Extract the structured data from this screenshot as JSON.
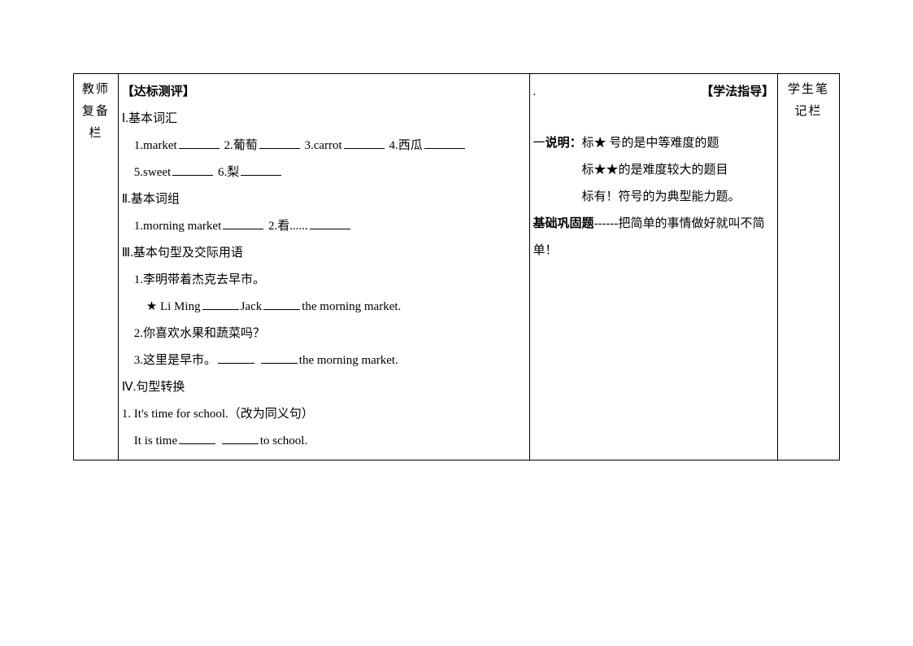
{
  "leftColumn": {
    "label": "教师复备栏"
  },
  "main": {
    "assessmentTitle": "【达标测评】",
    "section1": {
      "title": "Ⅰ.基本词汇",
      "item1_prefix": "1.market",
      "item2_prefix": "2.葡萄",
      "item3_prefix": "3.carrot",
      "item4_prefix": "4.西瓜",
      "item5_prefix": "5.sweet",
      "item6_prefix": "6.梨"
    },
    "section2": {
      "title": "Ⅱ.基本词组",
      "item1_prefix": "1.morning market",
      "item2_prefix": "2.看......"
    },
    "section3": {
      "title": "Ⅲ.基本句型及交际用语",
      "item1": "1.李明带着杰克去早市。",
      "item1_sub_prefix": "★ Li Ming",
      "item1_sub_mid": "Jack",
      "item1_sub_suffix": "the morning market.",
      "item2": "2.你喜欢水果和蔬菜吗？",
      "item3_prefix": "3.这里是早市。",
      "item3_suffix": "the morning market."
    },
    "section4": {
      "title": "Ⅳ.句型转换",
      "item1": "1. It's time for school.（改为同义句）",
      "item1_sub_prefix": "It is time",
      "item1_sub_suffix": "to school."
    }
  },
  "guide": {
    "dot": ".",
    "header": "【学法指导】",
    "line1_prefix": "一",
    "line1_bold": "说明：",
    "line1_rest": "标★ 号的是中等难度的题",
    "line2": "标★★的是难度较大的题目",
    "line3": "标有！符号的为典型能力题。",
    "line4_bold": "基础巩固题",
    "line4_rest": "------把简单的事情做好就叫不简单！"
  },
  "rightColumn": {
    "label": "学生笔记栏"
  }
}
